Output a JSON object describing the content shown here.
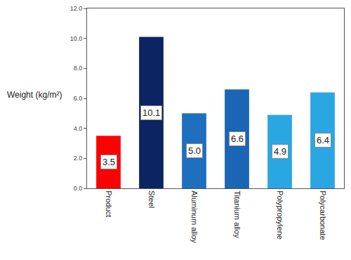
{
  "chart_data": {
    "type": "bar",
    "y_label": "Weight (kg/m²)",
    "categories": [
      "Product",
      "Steel",
      "Aluminum alloy",
      "Titanium alloy",
      "Polypropylene",
      "Polycarbonate"
    ],
    "values": [
      3.5,
      10.1,
      5.0,
      6.6,
      4.9,
      6.4
    ],
    "value_labels": [
      "3.5",
      "10.1",
      "5.0",
      "6.6",
      "4.9",
      "6.4"
    ],
    "colors": [
      "#ff0000",
      "#0c2461",
      "#1f6fbf",
      "#1a66b5",
      "#2aa6e3",
      "#2aa6e3"
    ],
    "ylim": [
      0,
      12
    ],
    "yticks": [
      {
        "value": 0,
        "label": "0.0"
      },
      {
        "value": 2,
        "label": "2.0"
      },
      {
        "value": 4,
        "label": "4.0"
      },
      {
        "value": 6,
        "label": "6.0"
      },
      {
        "value": 8,
        "label": "8.0"
      },
      {
        "value": 10,
        "label": "10.0"
      },
      {
        "value": 12,
        "label": "12.0"
      }
    ],
    "grid": false,
    "data_labels": true
  }
}
